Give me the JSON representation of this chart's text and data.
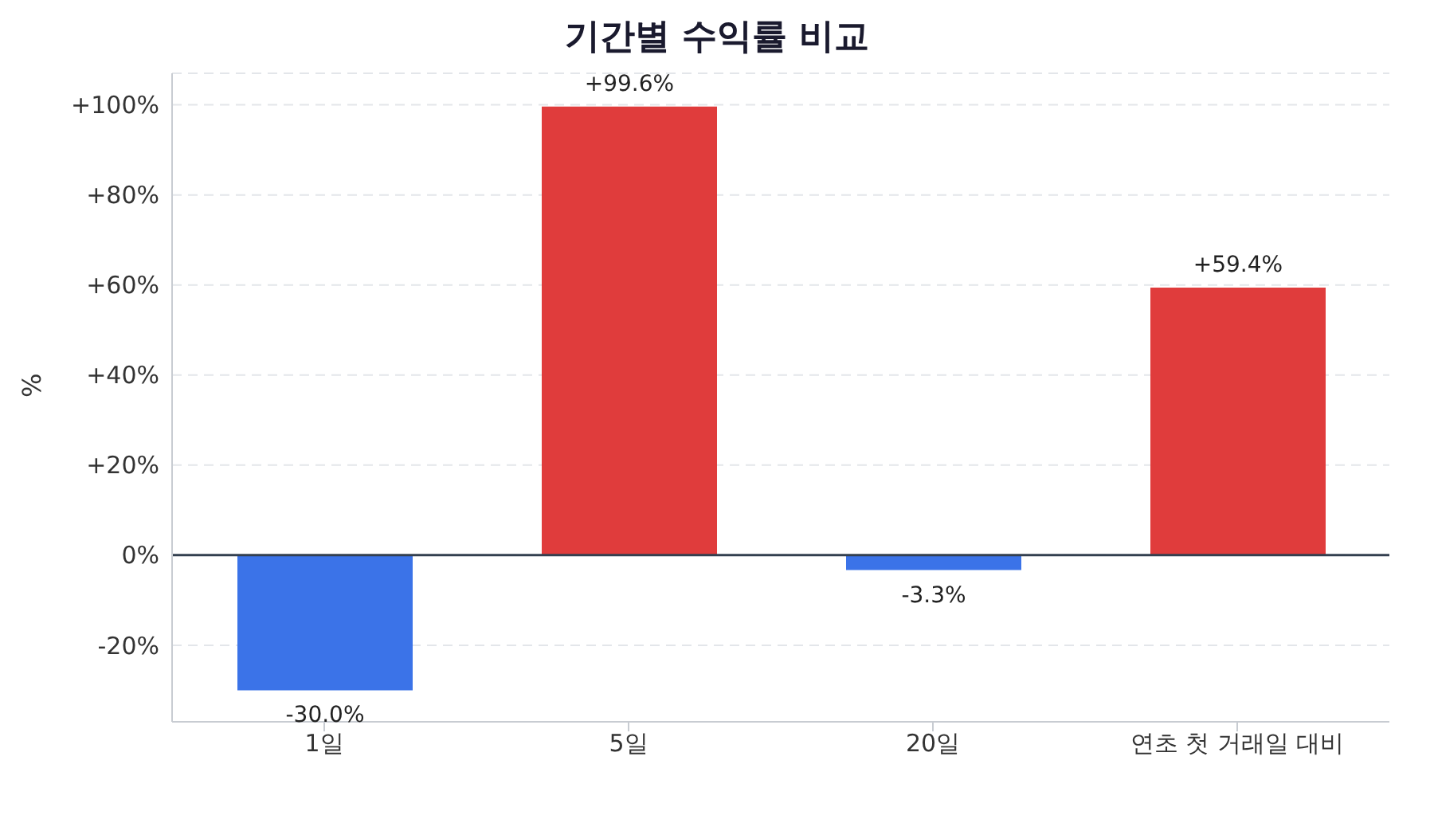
{
  "chart_data": {
    "type": "bar",
    "title": "기간별 수익률 비교",
    "ylabel": "%",
    "categories": [
      "1일",
      "5일",
      "20일",
      "연초 첫 거래일 대비"
    ],
    "values": [
      -30.0,
      99.6,
      -3.3,
      59.4
    ],
    "colors": [
      "#3b73e8",
      "#e03c3c",
      "#3b73e8",
      "#e03c3c"
    ],
    "value_labels": [
      "-30.0%",
      "+99.6%",
      "-3.3%",
      "+59.4%"
    ],
    "ylim": [
      -37,
      107
    ],
    "yticks": [
      {
        "value": -20,
        "label": "-20%"
      },
      {
        "value": 0,
        "label": "0%"
      },
      {
        "value": 20,
        "label": "+20%"
      },
      {
        "value": 40,
        "label": "+40%"
      },
      {
        "value": 60,
        "label": "+60%"
      },
      {
        "value": 80,
        "label": "+80%"
      },
      {
        "value": 100,
        "label": "+100%"
      }
    ],
    "ref_lines": [
      {
        "axis": "y",
        "value": 0,
        "color": "#333f4f"
      }
    ],
    "grid": "y"
  }
}
